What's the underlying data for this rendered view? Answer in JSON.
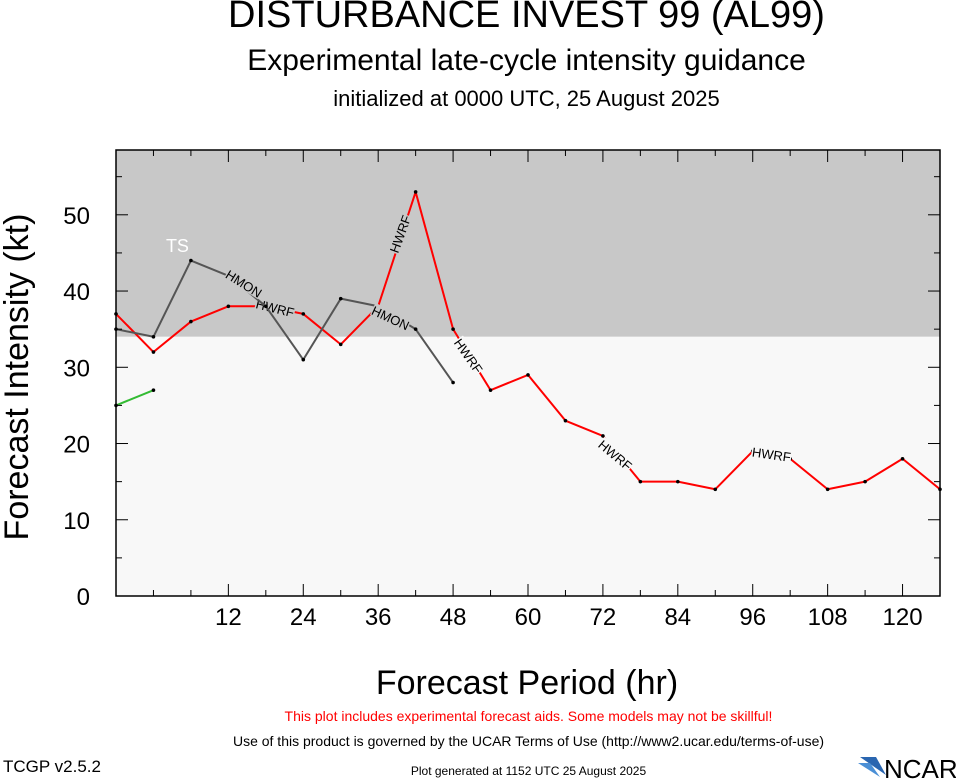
{
  "header": {
    "title": "DISTURBANCE INVEST 99 (AL99)",
    "subtitle": "Experimental late-cycle intensity guidance",
    "initialized": "initialized at 0000 UTC, 25 August 2025"
  },
  "footer": {
    "disclaimer": "This plot includes experimental forecast aids. Some models may not be skillful!",
    "terms": "Use of this product is governed by the UCAR Terms of Use (http://www2.ucar.edu/terms-of-use)",
    "version": "TCGP v2.5.2",
    "generated": "Plot generated at 1152 UTC   25 August 2025",
    "logo_text": "NCAR"
  },
  "colors": {
    "ts_band": "#c8c8c8",
    "below_band": "#f8f8f8",
    "hwrf": "#ff0000",
    "hmon": "#555555",
    "green_model": "#33bb33",
    "disclaimer": "#ff0000"
  },
  "chart_data": {
    "type": "line",
    "xlabel": "Forecast Period (hr)",
    "ylabel": "Forecast Intensity (kt)",
    "xlim": [
      -6,
      126
    ],
    "ylim": [
      0,
      58.5
    ],
    "xticks": [
      12,
      24,
      36,
      48,
      60,
      72,
      84,
      96,
      108,
      120
    ],
    "yticks": [
      0,
      10,
      20,
      30,
      40,
      50
    ],
    "bands": [
      {
        "label": "TS",
        "from": 34,
        "to": 58.5,
        "color": "#c8c8c8"
      },
      {
        "label": "",
        "from": 0,
        "to": 34,
        "color": "#f8f8f8"
      }
    ],
    "series": [
      {
        "name": "HWRF",
        "color": "#ff0000",
        "x": [
          -6,
          0,
          6,
          12,
          18,
          24,
          30,
          36,
          42,
          48,
          54,
          60,
          66,
          72,
          78,
          84,
          90,
          96,
          102,
          108,
          114,
          120,
          126
        ],
        "y": [
          37,
          32,
          36,
          38,
          38,
          37,
          33,
          38,
          53,
          35,
          27,
          29,
          23,
          21,
          15,
          15,
          14,
          19,
          18,
          14,
          15,
          18,
          14
        ],
        "labels": [
          {
            "text": "HWRF",
            "x": 19.5,
            "y": 37.8,
            "angle": 14
          },
          {
            "text": "HWRF",
            "x": 39.5,
            "y": 47.5,
            "angle": -70
          },
          {
            "text": "HWRF",
            "x": 50.5,
            "y": 31.5,
            "angle": 55
          },
          {
            "text": "HWRF",
            "x": 74,
            "y": 18.5,
            "angle": 40
          },
          {
            "text": "HWRF",
            "x": 99,
            "y": 18.6,
            "angle": 8
          }
        ]
      },
      {
        "name": "HMON",
        "color": "#555555",
        "x": [
          -6,
          0,
          6,
          12,
          18,
          24,
          30,
          36,
          42,
          48
        ],
        "y": [
          35,
          34,
          44,
          42,
          38,
          31,
          39,
          38,
          35,
          28
        ],
        "labels": [
          {
            "text": "HMON",
            "x": 14.5,
            "y": 41,
            "angle": 32
          },
          {
            "text": "HMON",
            "x": 38,
            "y": 36.5,
            "angle": 25
          }
        ]
      },
      {
        "name": "",
        "color": "#33bb33",
        "x": [
          -6,
          0
        ],
        "y": [
          25,
          27
        ],
        "labels": []
      }
    ]
  }
}
